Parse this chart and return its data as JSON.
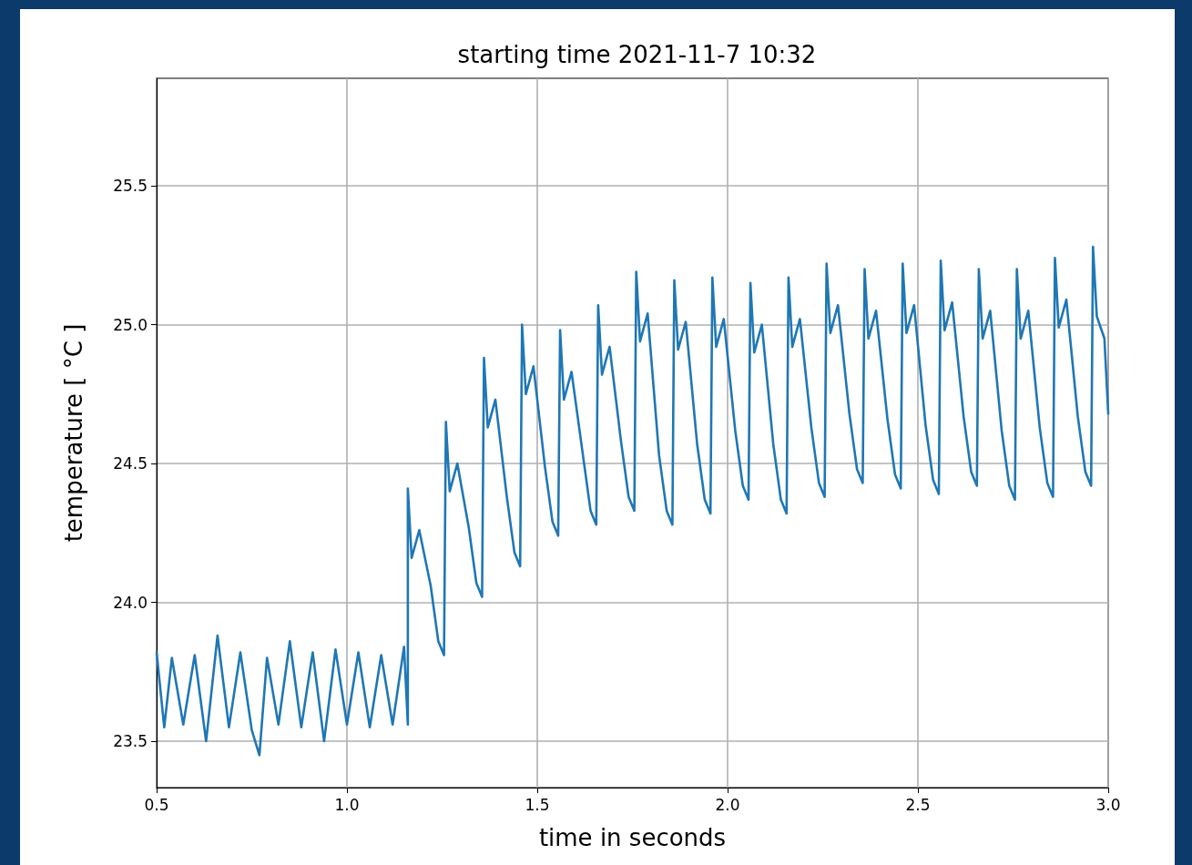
{
  "chart_data": {
    "type": "line",
    "title": "starting time 2021-11-7 10:32",
    "xlabel": "time in seconds",
    "ylabel": "temperature [ °C ]",
    "xlim": [
      0.5,
      3.0
    ],
    "ylim": [
      23.333,
      25.887
    ],
    "xticks": [
      0.5,
      {
        "value": 1,
        "label": "1.0"
      },
      1.5,
      {
        "value": 2,
        "label": "2.0"
      },
      2.5,
      {
        "value": 3,
        "label": "3.0"
      }
    ],
    "yticks": [
      23.5,
      {
        "value": 24,
        "label": "24.0"
      },
      24.5,
      {
        "value": 25,
        "label": "25.0"
      },
      25.5
    ],
    "grid": true,
    "marker": "none",
    "line_style": "solid",
    "series": [
      {
        "color": "#1f77b4",
        "x": [
          0.5,
          0.52,
          0.54,
          0.57,
          0.6,
          0.63,
          0.66,
          0.69,
          0.72,
          0.75,
          0.77,
          0.79,
          0.82,
          0.85,
          0.88,
          0.91,
          0.94,
          0.97,
          1.0,
          1.03,
          1.06,
          1.09,
          1.12,
          1.15,
          1.16,
          1.16,
          1.17,
          1.19,
          1.22,
          1.24,
          1.255,
          1.26,
          1.27,
          1.29,
          1.32,
          1.34,
          1.355,
          1.36,
          1.37,
          1.39,
          1.42,
          1.44,
          1.455,
          1.46,
          1.47,
          1.49,
          1.52,
          1.54,
          1.555,
          1.56,
          1.57,
          1.59,
          1.62,
          1.64,
          1.655,
          1.66,
          1.67,
          1.69,
          1.72,
          1.74,
          1.755,
          1.76,
          1.77,
          1.79,
          1.82,
          1.84,
          1.855,
          1.86,
          1.87,
          1.89,
          1.92,
          1.94,
          1.955,
          1.96,
          1.97,
          1.99,
          2.02,
          2.04,
          2.055,
          2.06,
          2.07,
          2.09,
          2.12,
          2.14,
          2.155,
          2.16,
          2.17,
          2.19,
          2.22,
          2.24,
          2.255,
          2.26,
          2.27,
          2.29,
          2.32,
          2.34,
          2.355,
          2.36,
          2.37,
          2.39,
          2.42,
          2.44,
          2.455,
          2.46,
          2.47,
          2.49,
          2.52,
          2.54,
          2.555,
          2.56,
          2.57,
          2.59,
          2.62,
          2.64,
          2.655,
          2.66,
          2.67,
          2.69,
          2.72,
          2.74,
          2.755,
          2.76,
          2.77,
          2.79,
          2.82,
          2.84,
          2.855,
          2.86,
          2.87,
          2.89,
          2.92,
          2.94,
          2.955,
          2.96,
          2.97,
          2.99,
          3.0
        ],
        "values": [
          23.82,
          23.55,
          23.8,
          23.56,
          23.81,
          23.5,
          23.88,
          23.55,
          23.82,
          23.54,
          23.45,
          23.8,
          23.56,
          23.86,
          23.55,
          23.82,
          23.5,
          23.83,
          23.56,
          23.82,
          23.55,
          23.81,
          23.56,
          23.84,
          23.56,
          24.41,
          24.16,
          24.26,
          24.06,
          23.86,
          23.81,
          24.65,
          24.4,
          24.5,
          24.27,
          24.07,
          24.02,
          24.88,
          24.63,
          24.73,
          24.38,
          24.18,
          24.13,
          25.0,
          24.75,
          24.85,
          24.49,
          24.29,
          24.24,
          24.98,
          24.73,
          24.83,
          24.53,
          24.33,
          24.28,
          25.07,
          24.82,
          24.92,
          24.58,
          24.38,
          24.33,
          25.19,
          24.94,
          25.04,
          24.53,
          24.33,
          24.28,
          25.16,
          24.91,
          25.01,
          24.57,
          24.37,
          24.32,
          25.17,
          24.92,
          25.02,
          24.62,
          24.42,
          24.37,
          25.15,
          24.9,
          25.0,
          24.57,
          24.37,
          24.32,
          25.17,
          24.92,
          25.02,
          24.63,
          24.43,
          24.38,
          25.22,
          24.97,
          25.07,
          24.68,
          24.48,
          24.43,
          25.2,
          24.95,
          25.05,
          24.66,
          24.46,
          24.41,
          25.22,
          24.97,
          25.07,
          24.64,
          24.44,
          24.39,
          25.23,
          24.98,
          25.08,
          24.67,
          24.47,
          24.42,
          25.2,
          24.95,
          25.05,
          24.62,
          24.42,
          24.37,
          25.2,
          24.95,
          25.05,
          24.63,
          24.43,
          24.38,
          25.24,
          24.99,
          25.09,
          24.67,
          24.47,
          24.42,
          25.28,
          25.03,
          24.95,
          24.68
        ]
      }
    ]
  }
}
